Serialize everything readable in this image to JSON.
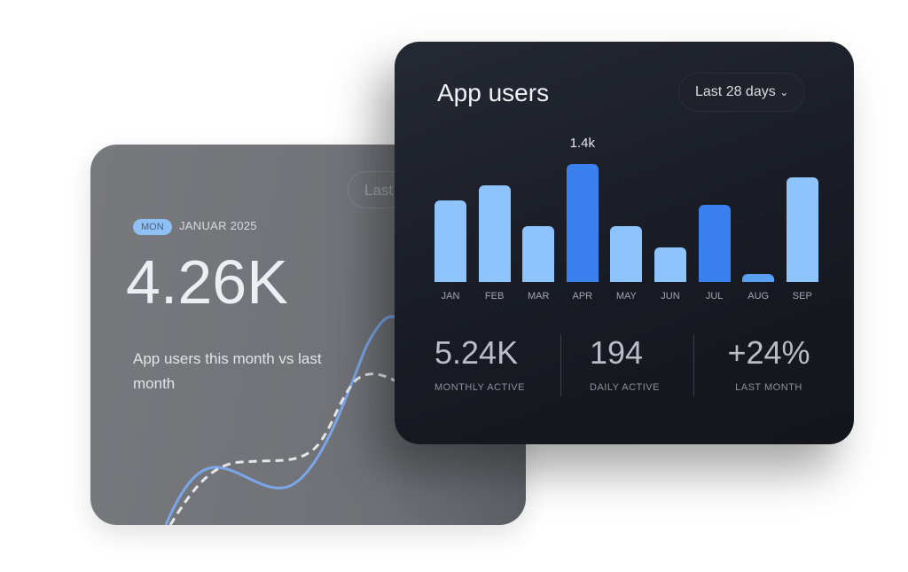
{
  "back_card": {
    "range_label": "Last",
    "badge": "MON",
    "date": "JANUAR 2025",
    "value": "4.26K",
    "description": "App users this month vs last month"
  },
  "front_card": {
    "title": "App users",
    "range_selector": "Last 28 days",
    "chevron": "chevron-down-icon",
    "stats": [
      {
        "value": "5.24K",
        "label": "MONTHLY ACTIVE"
      },
      {
        "value": "194",
        "label": "DAILY ACTIVE"
      },
      {
        "value": "+24%",
        "label": "LAST MONTH"
      }
    ]
  },
  "chart_data": {
    "type": "bar",
    "categories": [
      "JAN",
      "FEB",
      "MAR",
      "APR",
      "MAY",
      "JUN",
      "JUL",
      "AUG",
      "SEP"
    ],
    "values": [
      0.97,
      1.15,
      0.66,
      1.4,
      0.66,
      0.41,
      0.92,
      0.1,
      1.24
    ],
    "unit": "k",
    "highlighted": [
      false,
      false,
      false,
      true,
      false,
      false,
      true,
      false,
      false
    ],
    "data_labels": {
      "APR": "1.4k"
    },
    "ylim": [
      0,
      1.4
    ],
    "colors": {
      "normal": "#8ec3fb",
      "highlight": "#3a80ee",
      "small": "#5aa0f2"
    }
  }
}
